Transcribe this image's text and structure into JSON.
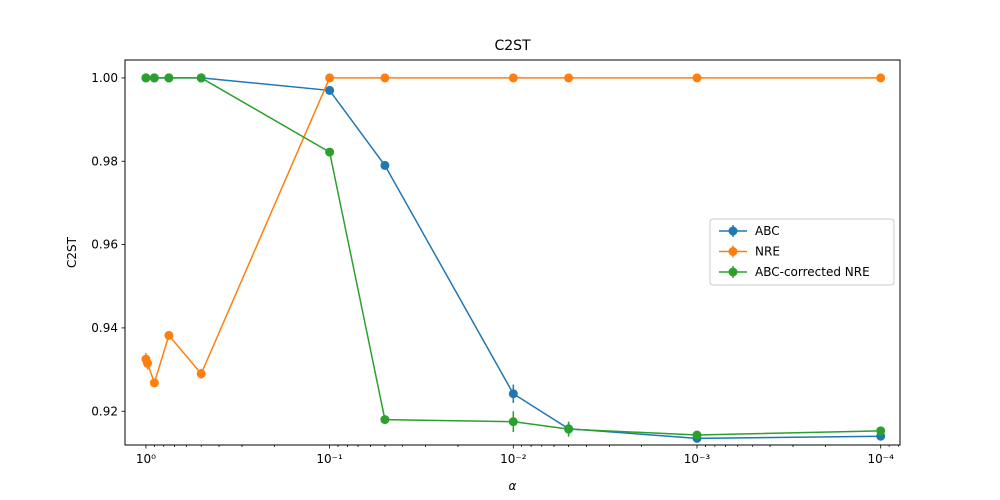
{
  "chart_data": {
    "type": "line",
    "title": "C2ST",
    "xlabel": "α",
    "ylabel": "C2ST",
    "x_scale": "log-reversed",
    "xlim": [
      1.3,
      7.85e-05
    ],
    "ylim": [
      0.9119,
      1.0043
    ],
    "x_ticks": [
      {
        "value": 1,
        "label": "10⁰"
      },
      {
        "value": 0.1,
        "label": "10⁻¹"
      },
      {
        "value": 0.01,
        "label": "10⁻²"
      },
      {
        "value": 0.001,
        "label": "10⁻³"
      },
      {
        "value": 0.0001,
        "label": "10⁻⁴"
      }
    ],
    "y_ticks": [
      {
        "value": 0.92,
        "label": "0.92"
      },
      {
        "value": 0.94,
        "label": "0.94"
      },
      {
        "value": 0.96,
        "label": "0.96"
      },
      {
        "value": 0.98,
        "label": "0.98"
      },
      {
        "value": 1.0,
        "label": "1.00"
      }
    ],
    "grid": false,
    "legend_position": "center-right",
    "series": [
      {
        "name": "ABC",
        "color": "#1f77b4",
        "x": [
          1,
          0.9,
          0.75,
          0.5,
          0.1,
          0.05,
          0.01,
          0.005,
          0.001,
          0.0001
        ],
        "y": [
          1.0,
          1.0,
          1.0,
          1.0,
          0.997,
          0.979,
          0.9242,
          0.9158,
          0.9135,
          0.914
        ],
        "err": [
          0,
          0,
          0,
          0,
          0,
          0,
          0.0022,
          0.0015,
          0.0005,
          0.0005
        ]
      },
      {
        "name": "NRE",
        "color": "#ff7f0e",
        "x": [
          1,
          0.98,
          0.9,
          0.75,
          0.5,
          0.1,
          0.05,
          0.01,
          0.005,
          0.001,
          0.0001
        ],
        "y": [
          0.9325,
          0.9315,
          0.9268,
          0.9382,
          0.929,
          1.0,
          1.0,
          1.0,
          1.0,
          1.0,
          1.0
        ],
        "err": [
          0.0015,
          0.0015,
          0.001,
          0.0005,
          0.0012,
          0,
          0,
          0,
          0,
          0,
          0
        ]
      },
      {
        "name": "ABC-corrected NRE",
        "color": "#2ca02c",
        "x": [
          1,
          0.9,
          0.75,
          0.5,
          0.1,
          0.05,
          0.01,
          0.005,
          0.001,
          0.0001
        ],
        "y": [
          1.0,
          1.0,
          1.0,
          1.0,
          0.9822,
          0.918,
          0.9175,
          0.9157,
          0.9143,
          0.9153
        ],
        "err": [
          0,
          0,
          0,
          0,
          0,
          0,
          0.0025,
          0.0018,
          0.0005,
          0.0005
        ]
      }
    ]
  }
}
